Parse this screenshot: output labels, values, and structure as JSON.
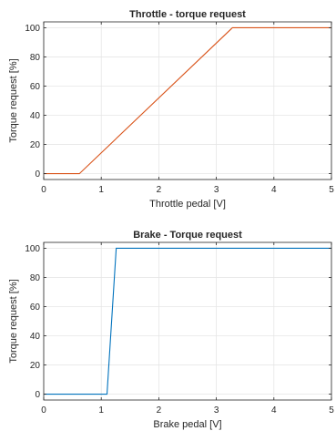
{
  "chart_data": [
    {
      "type": "line",
      "title": "Throttle - torque request",
      "xlabel": "Throttle pedal [V]",
      "ylabel": "Torque request [%]",
      "xlim": [
        0,
        5
      ],
      "ylim": [
        -4,
        104
      ],
      "x_ticks": [
        "0",
        "1",
        "2",
        "3",
        "4",
        "5"
      ],
      "y_ticks": [
        "0",
        "20",
        "40",
        "60",
        "80",
        "100"
      ],
      "grid": true,
      "series": [
        {
          "color": "#d95319",
          "x": [
            0,
            0.62,
            3.28,
            5
          ],
          "y": [
            0,
            0,
            100,
            100
          ]
        }
      ]
    },
    {
      "type": "line",
      "title": "Brake - Torque request",
      "xlabel": "Brake pedal [V]",
      "ylabel": "Torque request [%]",
      "xlim": [
        0,
        5
      ],
      "ylim": [
        -4,
        104
      ],
      "x_ticks": [
        "0",
        "1",
        "2",
        "3",
        "4",
        "5"
      ],
      "y_ticks": [
        "0",
        "20",
        "40",
        "60",
        "80",
        "100"
      ],
      "grid": true,
      "series": [
        {
          "color": "#0072bd",
          "x": [
            0,
            1.1,
            1.26,
            5
          ],
          "y": [
            0,
            0,
            100,
            100
          ]
        }
      ]
    }
  ]
}
